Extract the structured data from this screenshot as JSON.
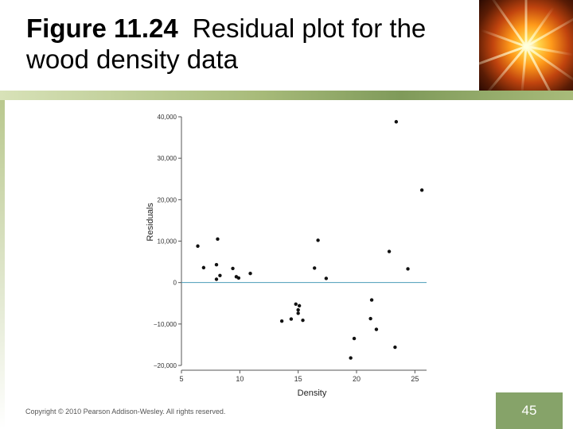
{
  "slide": {
    "figure_label": "Figure 11.24",
    "title_text": "Residual plot for the wood density data",
    "copyright": "Copyright © 2010 Pearson Addison-Wesley. All rights reserved.",
    "page_number": "45"
  },
  "colors": {
    "zero_line": "#4a9bb8",
    "points": "#111111",
    "axis": "#555555",
    "page_box": "#86a369"
  },
  "chart_data": {
    "type": "scatter",
    "title": "",
    "xlabel": "Density",
    "ylabel": "Residuals",
    "xlim": [
      5,
      26
    ],
    "ylim": [
      -20000,
      40000
    ],
    "xticks": [
      5,
      10,
      15,
      20,
      25
    ],
    "xtick_labels": [
      "5",
      "10",
      "15",
      "20",
      "25"
    ],
    "yticks": [
      -20000,
      -10000,
      0,
      10000,
      20000,
      30000,
      40000
    ],
    "ytick_labels": [
      "−20,000",
      "−10,000",
      "0",
      "10,000",
      "20,000",
      "30,000",
      "40,000"
    ],
    "reference_line_y": 0,
    "grid": false,
    "points": [
      {
        "x": 6.4,
        "y": 8800
      },
      {
        "x": 6.9,
        "y": 3600
      },
      {
        "x": 8.0,
        "y": 4300
      },
      {
        "x": 8.1,
        "y": 10500
      },
      {
        "x": 8.0,
        "y": 800
      },
      {
        "x": 8.3,
        "y": 1700
      },
      {
        "x": 9.4,
        "y": 3400
      },
      {
        "x": 9.7,
        "y": 1400
      },
      {
        "x": 9.9,
        "y": 1100
      },
      {
        "x": 10.9,
        "y": 2200
      },
      {
        "x": 13.6,
        "y": -9300
      },
      {
        "x": 14.4,
        "y": -8800
      },
      {
        "x": 14.8,
        "y": -5200
      },
      {
        "x": 15.0,
        "y": -6600
      },
      {
        "x": 15.0,
        "y": -7400
      },
      {
        "x": 15.1,
        "y": -5600
      },
      {
        "x": 15.4,
        "y": -9100
      },
      {
        "x": 16.4,
        "y": 3500
      },
      {
        "x": 16.7,
        "y": 10200
      },
      {
        "x": 17.4,
        "y": 1000
      },
      {
        "x": 19.5,
        "y": -18200
      },
      {
        "x": 19.8,
        "y": -13500
      },
      {
        "x": 21.2,
        "y": -8700
      },
      {
        "x": 21.3,
        "y": -4200
      },
      {
        "x": 21.7,
        "y": -11300
      },
      {
        "x": 22.8,
        "y": 7500
      },
      {
        "x": 23.3,
        "y": -15600
      },
      {
        "x": 23.4,
        "y": 38800
      },
      {
        "x": 24.4,
        "y": 3300
      },
      {
        "x": 25.6,
        "y": 22300
      }
    ]
  }
}
